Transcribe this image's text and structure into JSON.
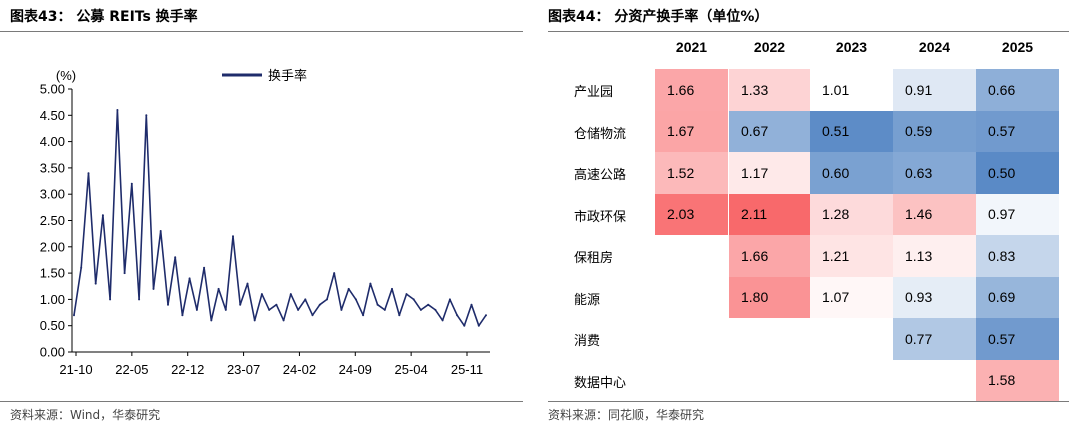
{
  "left": {
    "title": "图表43： 公募 REITs 换手率",
    "source": "资料来源：Wind，华泰研究"
  },
  "right": {
    "title": "图表44： 分资产换手率（单位%）",
    "source": "资料来源：同花顺，华泰研究"
  },
  "colors": {
    "line": "#1f2c6b",
    "high": "#f8696b",
    "mid": "#ffffff",
    "low": "#5a8ac6",
    "axis": "#000000"
  },
  "chart_data": [
    {
      "type": "line",
      "title": "公募 REITs 换手率",
      "ylabel": "(%)",
      "ylim": [
        0,
        5
      ],
      "yticks": [
        "0.00",
        "0.50",
        "1.00",
        "1.50",
        "2.00",
        "2.50",
        "3.00",
        "3.50",
        "4.00",
        "4.50",
        "5.00"
      ],
      "xticks": [
        "21-10",
        "22-05",
        "22-12",
        "23-07",
        "24-02",
        "24-09",
        "25-04",
        "25-11"
      ],
      "legend": "top-center",
      "series": [
        {
          "name": "换手率",
          "x": [
            "21-09",
            "21-10",
            "21-11",
            "21-11",
            "21-12",
            "21-12",
            "22-01",
            "22-01",
            "22-02",
            "22-02",
            "22-03",
            "22-03",
            "22-04",
            "22-05",
            "22-05",
            "22-06",
            "22-07",
            "22-08",
            "22-09",
            "22-10",
            "22-11",
            "22-12",
            "23-01",
            "23-02",
            "23-03",
            "23-04",
            "23-05",
            "23-06",
            "23-07",
            "23-08",
            "23-09",
            "23-10",
            "23-11",
            "23-12",
            "24-01",
            "24-02",
            "24-03",
            "24-04",
            "24-05",
            "24-06",
            "24-07",
            "24-08",
            "24-09",
            "24-10",
            "24-11",
            "24-12",
            "25-01",
            "25-02",
            "25-03",
            "25-04",
            "25-05",
            "25-06",
            "25-07",
            "25-08",
            "25-09",
            "25-10",
            "25-11",
            "25-12"
          ],
          "values": [
            0.7,
            1.6,
            3.4,
            1.3,
            2.6,
            1.0,
            4.6,
            1.5,
            3.2,
            1.0,
            4.5,
            1.2,
            2.3,
            0.9,
            1.8,
            0.7,
            1.4,
            0.8,
            1.6,
            0.6,
            1.2,
            0.8,
            2.2,
            0.9,
            1.3,
            0.6,
            1.1,
            0.8,
            0.9,
            0.6,
            1.1,
            0.8,
            1.0,
            0.7,
            0.9,
            1.0,
            1.5,
            0.8,
            1.2,
            1.0,
            0.7,
            1.3,
            0.9,
            0.8,
            1.2,
            0.7,
            1.1,
            1.0,
            0.8,
            0.9,
            0.8,
            0.6,
            1.0,
            0.7,
            0.5,
            0.9,
            0.5,
            0.7
          ]
        }
      ]
    },
    {
      "type": "heatmap",
      "title": "分资产换手率（单位%）",
      "columns": [
        "2021",
        "2022",
        "2023",
        "2024",
        "2025"
      ],
      "rows": [
        "产业园",
        "仓储物流",
        "高速公路",
        "市政环保",
        "保租房",
        "能源",
        "消费",
        "数据中心"
      ],
      "values": [
        [
          1.66,
          1.33,
          1.01,
          0.91,
          0.66
        ],
        [
          1.67,
          0.67,
          0.51,
          0.59,
          0.57
        ],
        [
          1.52,
          1.17,
          0.6,
          0.63,
          0.5
        ],
        [
          2.03,
          2.11,
          1.28,
          1.46,
          0.97
        ],
        [
          null,
          1.66,
          1.21,
          1.13,
          0.83
        ],
        [
          null,
          1.8,
          1.07,
          0.93,
          0.69
        ],
        [
          null,
          null,
          null,
          0.77,
          0.57
        ],
        [
          null,
          null,
          null,
          null,
          1.58
        ]
      ]
    }
  ]
}
